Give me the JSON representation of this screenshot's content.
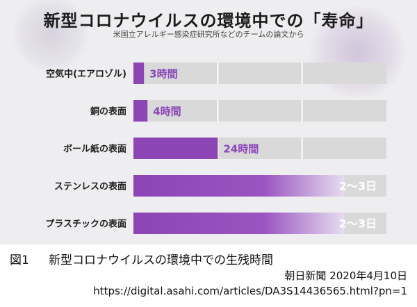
{
  "chart_title": "新型コロナウイルスの環境中での「寿命」",
  "chart_subtitle": "米国立アレルギー感染症研究所などのチームの論文から",
  "chart_data": {
    "type": "bar",
    "orientation": "horizontal",
    "categories": [
      "空気中(エアロゾル)",
      "銅の表面",
      "ボール紙の表面",
      "ステンレスの表面",
      "プラスチックの表面"
    ],
    "values": [
      3,
      4,
      24,
      60,
      60
    ],
    "value_labels": [
      "3時間",
      "4時間",
      "24時間",
      "2～3日",
      "2～3日"
    ],
    "unit": "hours",
    "xlim": [
      0,
      72
    ],
    "bar_color": "#8b45b5",
    "track_color": "#d9d9d9",
    "grid": true
  },
  "caption": {
    "figure_number": "図1",
    "text": "新型コロナウイルスの環境中での生残時間"
  },
  "source": "朝日新聞 2020年4月10日",
  "url": "https://digital.asahi.com/articles/DA3S14436565.html?pn=1"
}
